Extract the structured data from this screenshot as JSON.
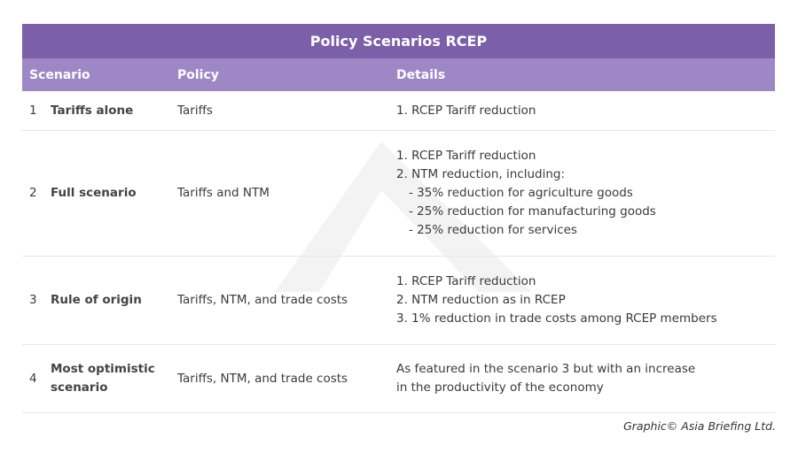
{
  "title": "Policy Scenarios RCEP",
  "header": {
    "scenario": "Scenario",
    "policy": "Policy",
    "details": "Details"
  },
  "rows": [
    {
      "number": "1",
      "scenario": [
        "Tariffs alone"
      ],
      "policy": "Tariffs",
      "details": [
        "1. RCEP Tariff reduction"
      ],
      "subdetails": []
    },
    {
      "number": "2",
      "scenario": [
        "Full scenario"
      ],
      "policy": "Tariffs and NTM",
      "details": [
        "1. RCEP Tariff reduction",
        "2. NTM reduction, including:"
      ],
      "subdetails": [
        "- 35% reduction for agriculture goods",
        "- 25% reduction for manufacturing goods",
        "- 25% reduction for services"
      ]
    },
    {
      "number": "3",
      "scenario": [
        "Rule of origin"
      ],
      "policy": "Tariffs, NTM, and trade costs",
      "details": [
        "1. RCEP Tariff reduction",
        "2. NTM reduction as in RCEP",
        "3. 1% reduction in trade costs among RCEP members"
      ],
      "subdetails": []
    },
    {
      "number": "4",
      "scenario": [
        "Most optimistic",
        "scenario"
      ],
      "policy": "Tariffs, NTM, and trade costs",
      "details": [
        "As featured in the scenario 3 but with an increase",
        "in the productivity of the economy"
      ],
      "subdetails": []
    }
  ],
  "credit": "Graphic© Asia Briefing Ltd."
}
